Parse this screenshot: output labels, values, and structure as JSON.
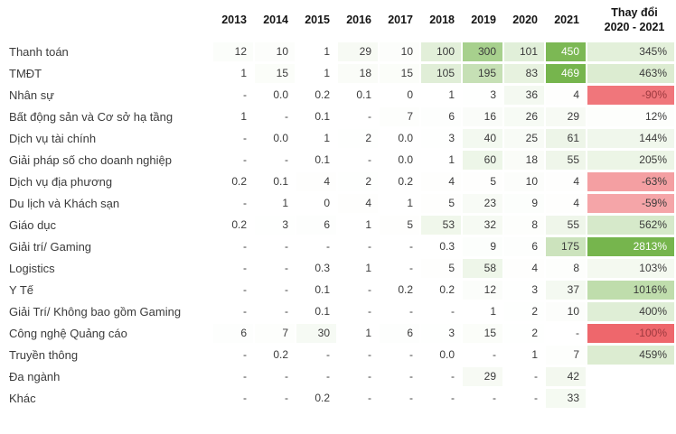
{
  "chart_data": {
    "type": "heatmap",
    "title": "",
    "columns": [
      "2013",
      "2014",
      "2015",
      "2016",
      "2017",
      "2018",
      "2019",
      "2020",
      "2021"
    ],
    "change_header": [
      "Thay đổi",
      "2020 - 2021"
    ],
    "rows": [
      {
        "label": "Thanh toán",
        "values": [
          "12",
          "10",
          "1",
          "29",
          "10",
          "100",
          "300",
          "101",
          "450"
        ],
        "change": "345%"
      },
      {
        "label": "TMĐT",
        "values": [
          "1",
          "15",
          "1",
          "18",
          "15",
          "105",
          "195",
          "83",
          "469"
        ],
        "change": "463%"
      },
      {
        "label": "Nhân sự",
        "values": [
          "-",
          "0.0",
          "0.2",
          "0.1",
          "0",
          "1",
          "3",
          "36",
          "4"
        ],
        "change": "-90%"
      },
      {
        "label": "Bất động sản và Cơ sở hạ tầng",
        "values": [
          "1",
          "-",
          "0.1",
          "-",
          "7",
          "6",
          "16",
          "26",
          "29"
        ],
        "change": "12%"
      },
      {
        "label": "Dịch vụ tài chính",
        "values": [
          "-",
          "0.0",
          "1",
          "2",
          "0.0",
          "3",
          "40",
          "25",
          "61"
        ],
        "change": "144%"
      },
      {
        "label": "Giải pháp số cho doanh nghiệp",
        "values": [
          "-",
          "-",
          "0.1",
          "-",
          "0.0",
          "1",
          "60",
          "18",
          "55"
        ],
        "change": "205%"
      },
      {
        "label": "Dịch vụ địa phương",
        "values": [
          "0.2",
          "0.1",
          "4",
          "2",
          "0.2",
          "4",
          "5",
          "10",
          "4"
        ],
        "change": "-63%"
      },
      {
        "label": "Du lịch và Khách sạn",
        "values": [
          "-",
          "1",
          "0",
          "4",
          "1",
          "5",
          "23",
          "9",
          "4"
        ],
        "change": "-59%"
      },
      {
        "label": "Giáo dục",
        "values": [
          "0.2",
          "3",
          "6",
          "1",
          "5",
          "53",
          "32",
          "8",
          "55"
        ],
        "change": "562%"
      },
      {
        "label": "Giải trí/ Gaming",
        "values": [
          "-",
          "-",
          "-",
          "-",
          "-",
          "0.3",
          "9",
          "6",
          "175"
        ],
        "change": "2813%"
      },
      {
        "label": "Logistics",
        "values": [
          "-",
          "-",
          "0.3",
          "1",
          "-",
          "5",
          "58",
          "4",
          "8"
        ],
        "change": "103%"
      },
      {
        "label": "Y Tế",
        "values": [
          "-",
          "-",
          "0.1",
          "-",
          "0.2",
          "0.2",
          "12",
          "3",
          "37"
        ],
        "change": "1016%"
      },
      {
        "label": "Giải Trí/ Không bao gồm Gaming",
        "values": [
          "-",
          "-",
          "0.1",
          "-",
          "-",
          "-",
          "1",
          "2",
          "10"
        ],
        "change": "400%"
      },
      {
        "label": "Công nghệ Quảng cáo",
        "values": [
          "6",
          "7",
          "30",
          "1",
          "6",
          "3",
          "15",
          "2",
          "-"
        ],
        "change": "-100%"
      },
      {
        "label": "Truyền thông",
        "values": [
          "-",
          "0.2",
          "-",
          "-",
          "-",
          "0.0",
          "-",
          "1",
          "7"
        ],
        "change": "459%"
      },
      {
        "label": "Đa ngành",
        "values": [
          "-",
          "-",
          "-",
          "-",
          "-",
          "-",
          "29",
          "-",
          "42"
        ],
        "change": ""
      },
      {
        "label": "Khác",
        "values": [
          "-",
          "-",
          "0.2",
          "-",
          "-",
          "-",
          "-",
          "-",
          "33"
        ],
        "change": ""
      }
    ],
    "color_scale": {
      "positive_max_color": "#76b54d",
      "negative_max_color": "#ee676c",
      "year_value_max": 469,
      "change_positive_max_pct": 2813,
      "change_negative_max_pct": 100,
      "light_text": "#ffffff",
      "dark_text": "#3b3b3b",
      "dark_red_text": "#9c393e"
    },
    "legend": "none",
    "grid": "off"
  }
}
